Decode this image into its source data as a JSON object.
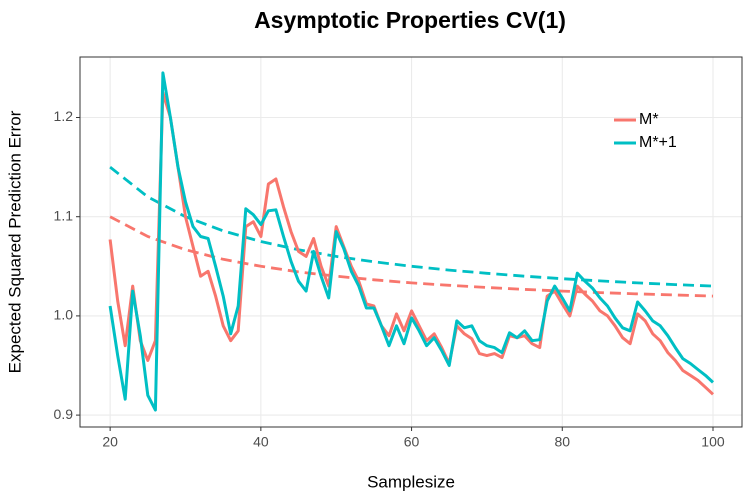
{
  "chart_data": {
    "type": "line",
    "title": "Asymptotic Properties CV(1)",
    "x_label": "Samplesize",
    "y_label": "Expected Squared Prediction Error",
    "x": [
      20,
      21,
      22,
      23,
      24,
      25,
      26,
      27,
      28,
      29,
      30,
      31,
      32,
      33,
      34,
      35,
      36,
      37,
      38,
      39,
      40,
      41,
      42,
      43,
      44,
      45,
      46,
      47,
      48,
      49,
      50,
      51,
      52,
      53,
      54,
      55,
      56,
      57,
      58,
      59,
      60,
      61,
      62,
      63,
      64,
      65,
      66,
      67,
      68,
      69,
      70,
      71,
      72,
      73,
      74,
      75,
      76,
      77,
      78,
      79,
      80,
      81,
      82,
      83,
      84,
      85,
      86,
      87,
      88,
      89,
      90,
      91,
      92,
      93,
      94,
      95,
      96,
      97,
      98,
      99,
      100
    ],
    "series": [
      {
        "name": "M*",
        "color": "#F8766D",
        "values": [
          1.077,
          1.015,
          0.97,
          1.03,
          0.975,
          0.955,
          0.975,
          1.225,
          1.2,
          1.15,
          1.1,
          1.07,
          1.04,
          1.045,
          1.02,
          0.99,
          0.975,
          0.985,
          1.09,
          1.095,
          1.08,
          1.133,
          1.138,
          1.11,
          1.085,
          1.065,
          1.06,
          1.078,
          1.05,
          1.03,
          1.09,
          1.07,
          1.05,
          1.035,
          1.012,
          1.01,
          0.99,
          0.98,
          1.002,
          0.985,
          1.005,
          0.99,
          0.975,
          0.982,
          0.968,
          0.952,
          0.99,
          0.982,
          0.977,
          0.962,
          0.96,
          0.962,
          0.958,
          0.98,
          0.978,
          0.98,
          0.972,
          0.968,
          1.02,
          1.025,
          1.012,
          1.0,
          1.03,
          1.022,
          1.015,
          1.005,
          1.0,
          0.99,
          0.978,
          0.972,
          1.002,
          0.995,
          0.982,
          0.975,
          0.963,
          0.955,
          0.945,
          0.94,
          0.935,
          0.928,
          0.921
        ],
        "asymptote": {
          "x": [
            20,
            25,
            30,
            35,
            40,
            45,
            50,
            55,
            60,
            65,
            70,
            75,
            80,
            85,
            90,
            95,
            100
          ],
          "values": [
            1.1,
            1.08,
            1.0667,
            1.0571,
            1.05,
            1.0444,
            1.04,
            1.0364,
            1.0333,
            1.0308,
            1.0286,
            1.0267,
            1.025,
            1.0235,
            1.0222,
            1.0211,
            1.02
          ]
        }
      },
      {
        "name": "M*+1",
        "color": "#00BFC4",
        "values": [
          1.01,
          0.96,
          0.916,
          1.025,
          0.98,
          0.92,
          0.905,
          1.245,
          1.2,
          1.15,
          1.115,
          1.09,
          1.08,
          1.078,
          1.05,
          1.02,
          0.982,
          1.01,
          1.108,
          1.102,
          1.092,
          1.106,
          1.107,
          1.08,
          1.055,
          1.035,
          1.025,
          1.065,
          1.04,
          1.018,
          1.085,
          1.068,
          1.045,
          1.03,
          1.008,
          1.008,
          0.99,
          0.97,
          0.99,
          0.972,
          0.998,
          0.985,
          0.97,
          0.978,
          0.965,
          0.95,
          0.995,
          0.988,
          0.99,
          0.975,
          0.97,
          0.968,
          0.963,
          0.983,
          0.978,
          0.985,
          0.975,
          0.976,
          1.015,
          1.03,
          1.018,
          1.005,
          1.043,
          1.035,
          1.028,
          1.018,
          1.01,
          0.998,
          0.988,
          0.985,
          1.014,
          1.005,
          0.995,
          0.99,
          0.98,
          0.968,
          0.957,
          0.952,
          0.946,
          0.94,
          0.933
        ],
        "asymptote": {
          "x": [
            20,
            25,
            30,
            35,
            40,
            45,
            50,
            55,
            60,
            65,
            70,
            75,
            80,
            85,
            90,
            95,
            100
          ],
          "values": [
            1.15,
            1.12,
            1.1,
            1.0857,
            1.075,
            1.0667,
            1.06,
            1.0545,
            1.05,
            1.0462,
            1.0429,
            1.04,
            1.0375,
            1.0353,
            1.0333,
            1.0316,
            1.03
          ]
        }
      }
    ],
    "xlim": [
      16,
      103.85
    ],
    "ylim": [
      0.888,
      1.261
    ],
    "xticks": [
      20,
      40,
      60,
      80,
      100
    ],
    "yticks": [
      0.9,
      {
        "value": 1,
        "label": "1.0"
      },
      1.1,
      1.2
    ],
    "grid": true,
    "legend": "top-right"
  }
}
